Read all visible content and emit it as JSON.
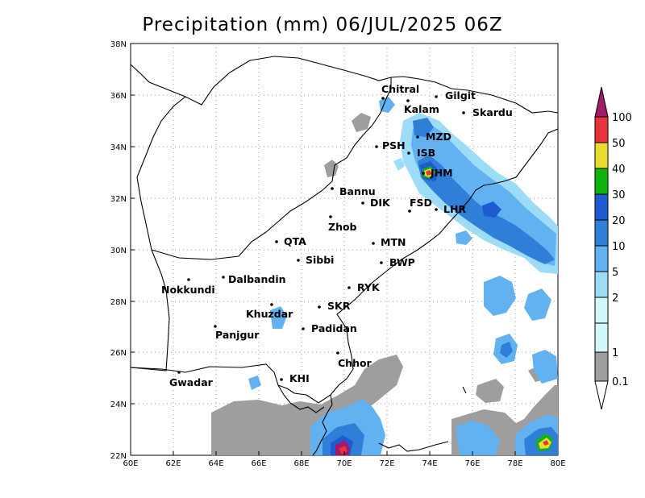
{
  "title": "Precipitation (mm) 06/JUL/2025 06Z",
  "lat_labels": [
    "38N",
    "36N",
    "34N",
    "32N",
    "30N",
    "28N",
    "26N",
    "24N",
    "22N"
  ],
  "lon_labels": [
    "60E",
    "62E",
    "64E",
    "66E",
    "68E",
    "70E",
    "72E",
    "74E",
    "76E",
    "78E",
    "80E"
  ],
  "colorbar": {
    "levels": [
      "100",
      "50",
      "40",
      "30",
      "20",
      "10",
      "5",
      "2",
      "1",
      "0.1"
    ],
    "colors": [
      "#a21a6c",
      "#e8323c",
      "#e8dc32",
      "#0fb40f",
      "#1e5ad2",
      "#2f7fd8",
      "#62b1f0",
      "#9cdcf7",
      "#d2f8fb",
      "#9e9e9e"
    ]
  },
  "cities": [
    {
      "name": "Chitral"
    },
    {
      "name": "Gilgit"
    },
    {
      "name": "Kalam"
    },
    {
      "name": "Skardu"
    },
    {
      "name": "MZD"
    },
    {
      "name": "PSH"
    },
    {
      "name": "ISB"
    },
    {
      "name": "JHM"
    },
    {
      "name": "Bannu"
    },
    {
      "name": "DIK"
    },
    {
      "name": "FSD"
    },
    {
      "name": "LHR"
    },
    {
      "name": "Zhob"
    },
    {
      "name": "QTA"
    },
    {
      "name": "MTN"
    },
    {
      "name": "Sibbi"
    },
    {
      "name": "BWP"
    },
    {
      "name": "Dalbandin"
    },
    {
      "name": "Nokkundi"
    },
    {
      "name": "RYK"
    },
    {
      "name": "Khuzdar"
    },
    {
      "name": "SKR"
    },
    {
      "name": "Panjgur"
    },
    {
      "name": "Padidan"
    },
    {
      "name": "Chhor"
    },
    {
      "name": "KHI"
    },
    {
      "name": "Gwadar"
    }
  ]
}
